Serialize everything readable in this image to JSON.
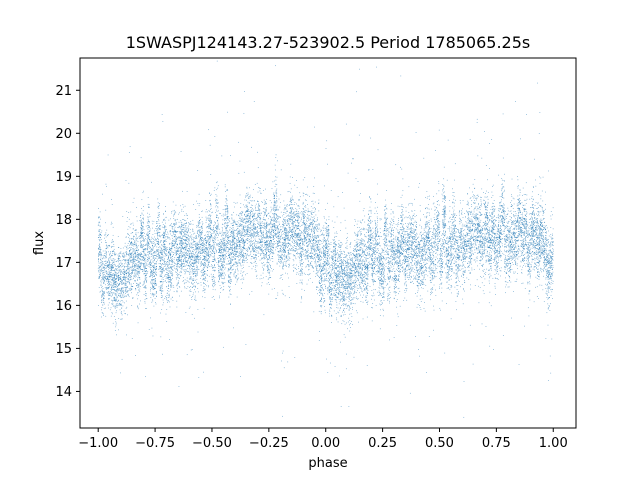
{
  "chart_data": {
    "type": "scatter",
    "title": "1SWASPJ124143.27-523902.5 Period 1785065.25s",
    "xlabel": "phase",
    "ylabel": "flux",
    "xlim": [
      -1.08,
      1.1
    ],
    "ylim": [
      13.15,
      21.75
    ],
    "xticks": [
      -1.0,
      -0.75,
      -0.5,
      -0.25,
      0.0,
      0.25,
      0.5,
      0.75,
      1.0
    ],
    "xtick_labels": [
      "−1.00",
      "−0.75",
      "−0.50",
      "−0.25",
      "0.00",
      "0.25",
      "0.50",
      "0.75",
      "1.00"
    ],
    "yticks": [
      14,
      15,
      16,
      17,
      18,
      19,
      20,
      21
    ],
    "ytick_labels": [
      "14",
      "15",
      "16",
      "17",
      "18",
      "19",
      "20",
      "21"
    ],
    "grid": false,
    "marker_color": "#1f77b4",
    "profile": {
      "phase": [
        0.0,
        0.05,
        0.1,
        0.15,
        0.2,
        0.3,
        0.4,
        0.5,
        0.6,
        0.7,
        0.8,
        0.9,
        1.0
      ],
      "median_flux": [
        17.0,
        16.6,
        16.2,
        16.8,
        17.2,
        17.2,
        17.4,
        17.5,
        17.4,
        17.8,
        17.7,
        17.5,
        17.0
      ]
    },
    "point_count": 16000
  }
}
